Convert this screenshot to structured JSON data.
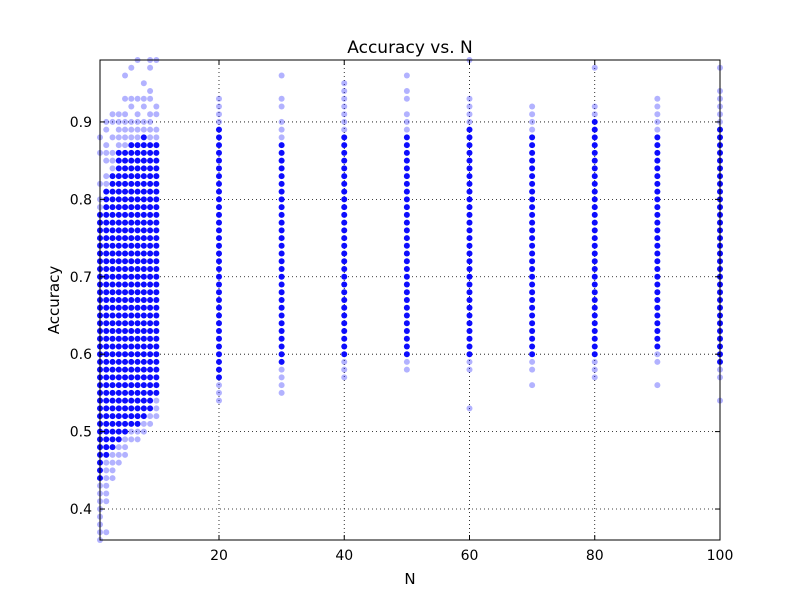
{
  "chart_data": {
    "type": "scatter",
    "title": "Accuracy vs. N",
    "xlabel": "N",
    "ylabel": "Accuracy",
    "xlim": [
      1,
      100
    ],
    "ylim": [
      0.36,
      0.98
    ],
    "xticks": [
      20,
      40,
      60,
      80,
      100
    ],
    "yticks": [
      0.4,
      0.5,
      0.6,
      0.7,
      0.8,
      0.9
    ],
    "grid": true,
    "marker_color": "#0000ff",
    "y_step": 0.01,
    "columns": [
      {
        "x": 1,
        "dense": [
          0.44,
          0.78
        ],
        "sparse": [
          0.36,
          0.37,
          0.38,
          0.39,
          0.4,
          0.41,
          0.42,
          0.43,
          0.79,
          0.8,
          0.82,
          0.86,
          0.88
        ]
      },
      {
        "x": 2,
        "dense": [
          0.47,
          0.81
        ],
        "sparse": [
          0.37,
          0.41,
          0.42,
          0.43,
          0.44,
          0.45,
          0.46,
          0.82,
          0.83,
          0.85,
          0.86,
          0.87,
          0.89,
          0.9
        ]
      },
      {
        "x": 3,
        "dense": [
          0.48,
          0.83
        ],
        "sparse": [
          0.44,
          0.45,
          0.46,
          0.47,
          0.84,
          0.85,
          0.86,
          0.88,
          0.9,
          0.91
        ]
      },
      {
        "x": 4,
        "dense": [
          0.49,
          0.86
        ],
        "sparse": [
          0.46,
          0.47,
          0.48,
          0.87,
          0.88,
          0.89,
          0.9,
          0.91
        ]
      },
      {
        "x": 5,
        "dense": [
          0.5,
          0.86
        ],
        "sparse": [
          0.47,
          0.48,
          0.49,
          0.87,
          0.88,
          0.89,
          0.9,
          0.91,
          0.93,
          0.96
        ]
      },
      {
        "x": 6,
        "dense": [
          0.51,
          0.87
        ],
        "sparse": [
          0.49,
          0.5,
          0.88,
          0.89,
          0.9,
          0.92,
          0.93,
          0.97
        ]
      },
      {
        "x": 7,
        "dense": [
          0.51,
          0.87
        ],
        "sparse": [
          0.49,
          0.5,
          0.88,
          0.89,
          0.9,
          0.91,
          0.93,
          0.98
        ]
      },
      {
        "x": 8,
        "dense": [
          0.52,
          0.88
        ],
        "sparse": [
          0.5,
          0.51,
          0.89,
          0.9,
          0.92,
          0.93,
          0.95
        ]
      },
      {
        "x": 9,
        "dense": [
          0.53,
          0.87
        ],
        "sparse": [
          0.51,
          0.52,
          0.88,
          0.89,
          0.9,
          0.91,
          0.93,
          0.94,
          0.97,
          0.98
        ]
      },
      {
        "x": 10,
        "dense": [
          0.55,
          0.87
        ],
        "sparse": [
          0.52,
          0.53,
          0.54,
          0.88,
          0.89,
          0.91,
          0.92,
          0.98
        ]
      },
      {
        "x": 20,
        "dense": [
          0.57,
          0.89
        ],
        "sparse": [
          0.54,
          0.55,
          0.56,
          0.9,
          0.91,
          0.92,
          0.93
        ]
      },
      {
        "x": 30,
        "dense": [
          0.59,
          0.87
        ],
        "sparse": [
          0.55,
          0.56,
          0.57,
          0.58,
          0.88,
          0.89,
          0.9,
          0.92,
          0.93,
          0.96
        ]
      },
      {
        "x": 40,
        "dense": [
          0.6,
          0.88
        ],
        "sparse": [
          0.57,
          0.58,
          0.59,
          0.89,
          0.9,
          0.91,
          0.92,
          0.93,
          0.94,
          0.95
        ]
      },
      {
        "x": 50,
        "dense": [
          0.6,
          0.88
        ],
        "sparse": [
          0.58,
          0.59,
          0.89,
          0.9,
          0.91,
          0.93,
          0.94,
          0.96
        ]
      },
      {
        "x": 60,
        "dense": [
          0.6,
          0.89
        ],
        "sparse": [
          0.53,
          0.58,
          0.59,
          0.9,
          0.91,
          0.92,
          0.93,
          0.98
        ]
      },
      {
        "x": 70,
        "dense": [
          0.6,
          0.88
        ],
        "sparse": [
          0.56,
          0.58,
          0.59,
          0.89,
          0.9,
          0.91,
          0.92
        ]
      },
      {
        "x": 80,
        "dense": [
          0.6,
          0.9
        ],
        "sparse": [
          0.57,
          0.58,
          0.59,
          0.91,
          0.92,
          0.97
        ]
      },
      {
        "x": 90,
        "dense": [
          0.61,
          0.88
        ],
        "sparse": [
          0.56,
          0.59,
          0.6,
          0.89,
          0.9,
          0.91,
          0.92,
          0.93
        ]
      },
      {
        "x": 100,
        "dense": [
          0.59,
          0.89
        ],
        "sparse": [
          0.54,
          0.57,
          0.58,
          0.9,
          0.91,
          0.92,
          0.93,
          0.94,
          0.97
        ]
      }
    ]
  }
}
